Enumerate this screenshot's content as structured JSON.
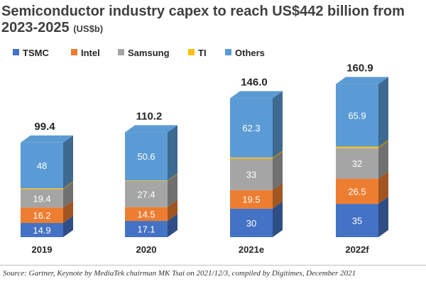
{
  "title": "Semiconductor industry capex to reach US$442 billion from 2023-2025",
  "unit": "(US$b)",
  "source": "Source: Gartner, Keynote by MediaTek chairman MK Tsai on 2021/12/3, compiled by Digitimes, December 2021",
  "chart_data": {
    "type": "bar",
    "stacked": true,
    "title": "Semiconductor industry capex to reach US$442 billion from 2023-2025",
    "unit": "(US$b)",
    "legend_position": "top-left",
    "categories": [
      "2019",
      "2020",
      "2021e",
      "2022f"
    ],
    "totals": [
      99.4,
      110.2,
      146.0,
      160.9
    ],
    "total_labels": [
      "99.4",
      "110.2",
      "146.0",
      "160.9"
    ],
    "series": [
      {
        "name": "TSMC",
        "color": "#4472c4",
        "values": [
          14.9,
          17.1,
          30,
          35
        ],
        "labels": [
          "14.9",
          "17.1",
          "30",
          "35"
        ]
      },
      {
        "name": "Intel",
        "color": "#ed7d31",
        "values": [
          16.2,
          14.5,
          19.5,
          26.5
        ],
        "labels": [
          "16.2",
          "14.5",
          "19.5",
          "26.5"
        ]
      },
      {
        "name": "Samsung",
        "color": "#a5a5a5",
        "values": [
          19.4,
          27.4,
          33,
          32
        ],
        "labels": [
          "19.4",
          "27.4",
          "33",
          "32"
        ]
      },
      {
        "name": "TI",
        "color": "#ffc000",
        "values": [
          0.9,
          0.6,
          1.2,
          1.5
        ],
        "labels": [
          "",
          "",
          "",
          ""
        ]
      },
      {
        "name": "Others",
        "color": "#5b9bd5",
        "values": [
          48,
          50.6,
          62.3,
          65.9
        ],
        "labels": [
          "48",
          "50.6",
          "62.3",
          "65.9"
        ]
      }
    ]
  }
}
